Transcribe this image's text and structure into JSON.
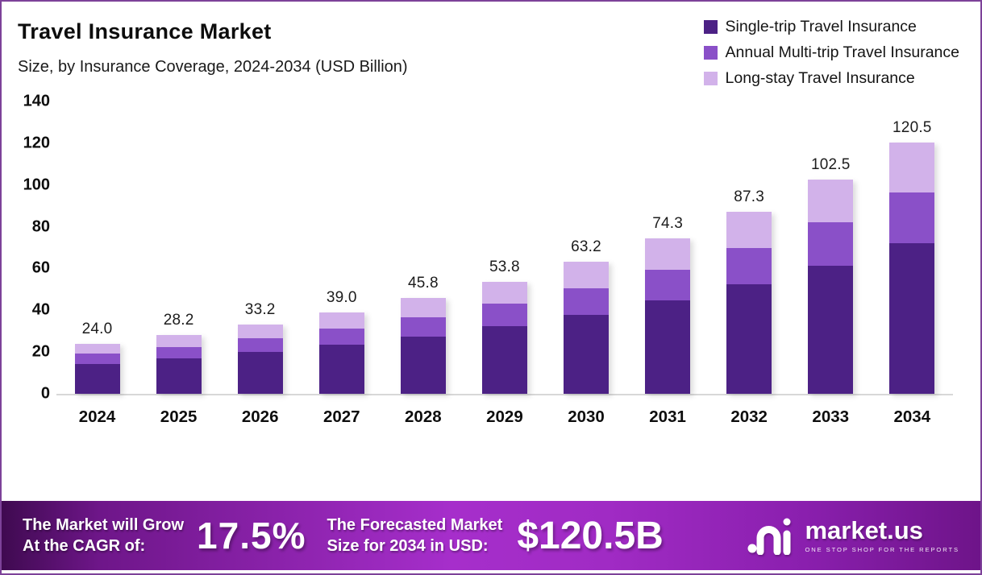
{
  "header": {
    "title": "Travel Insurance Market",
    "subtitle": "Size, by Insurance Coverage, 2024-2034 (USD Billion)"
  },
  "legend": [
    {
      "label": "Single-trip Travel Insurance",
      "color": "#4c2185"
    },
    {
      "label": "Annual Multi-trip Travel Insurance",
      "color": "#8a50c8"
    },
    {
      "label": "Long-stay Travel Insurance",
      "color": "#d2b2ea"
    }
  ],
  "chart_data": {
    "type": "bar",
    "stacked": true,
    "title": "Travel Insurance Market Size, by Insurance Coverage, 2024-2034 (USD Billion)",
    "categories": [
      "2024",
      "2025",
      "2026",
      "2027",
      "2028",
      "2029",
      "2030",
      "2031",
      "2032",
      "2033",
      "2034"
    ],
    "series": [
      {
        "name": "Single-trip Travel Insurance",
        "color": "#4c2185",
        "values": [
          14.4,
          16.9,
          19.9,
          23.4,
          27.5,
          32.3,
          37.9,
          44.6,
          52.4,
          61.5,
          72.3
        ]
      },
      {
        "name": "Annual Multi-trip Travel Insurance",
        "color": "#8a50c8",
        "values": [
          4.8,
          5.6,
          6.6,
          7.8,
          9.2,
          10.8,
          12.6,
          14.9,
          17.5,
          20.5,
          24.1
        ]
      },
      {
        "name": "Long-stay Travel Insurance",
        "color": "#d2b2ea",
        "values": [
          4.8,
          5.7,
          6.7,
          7.8,
          9.1,
          10.7,
          12.7,
          14.8,
          17.4,
          20.5,
          24.1
        ]
      }
    ],
    "totals": [
      24.0,
      28.2,
      33.2,
      39.0,
      45.8,
      53.8,
      63.2,
      74.3,
      87.3,
      102.5,
      120.5
    ],
    "total_labels": [
      "24.0",
      "28.2",
      "33.2",
      "39.0",
      "45.8",
      "53.8",
      "63.2",
      "74.3",
      "87.3",
      "102.5",
      "120.5"
    ],
    "xlabel": "",
    "ylabel": "",
    "ylim": [
      0,
      140
    ],
    "yticks": [
      0,
      20,
      40,
      60,
      80,
      100,
      120,
      140
    ],
    "grid": false,
    "legend_position": "top-right"
  },
  "banner": {
    "cagr_label_line1": "The Market will Grow",
    "cagr_label_line2": "At the CAGR of:",
    "cagr_value": "17.5%",
    "forecast_label_line1": "The Forecasted Market",
    "forecast_label_line2": "Size for 2034 in USD:",
    "forecast_value": "$120.5B",
    "brand": "market.us",
    "brand_tagline": "ONE STOP SHOP FOR THE REPORTS"
  },
  "colors": {
    "frame_border": "#7d4299",
    "banner_gradient_left": "#3f0a50",
    "banner_gradient_mid": "#a62ecb",
    "banner_gradient_right": "#6e1489",
    "axis_baseline": "#d8d8d8",
    "text": "#111111"
  }
}
